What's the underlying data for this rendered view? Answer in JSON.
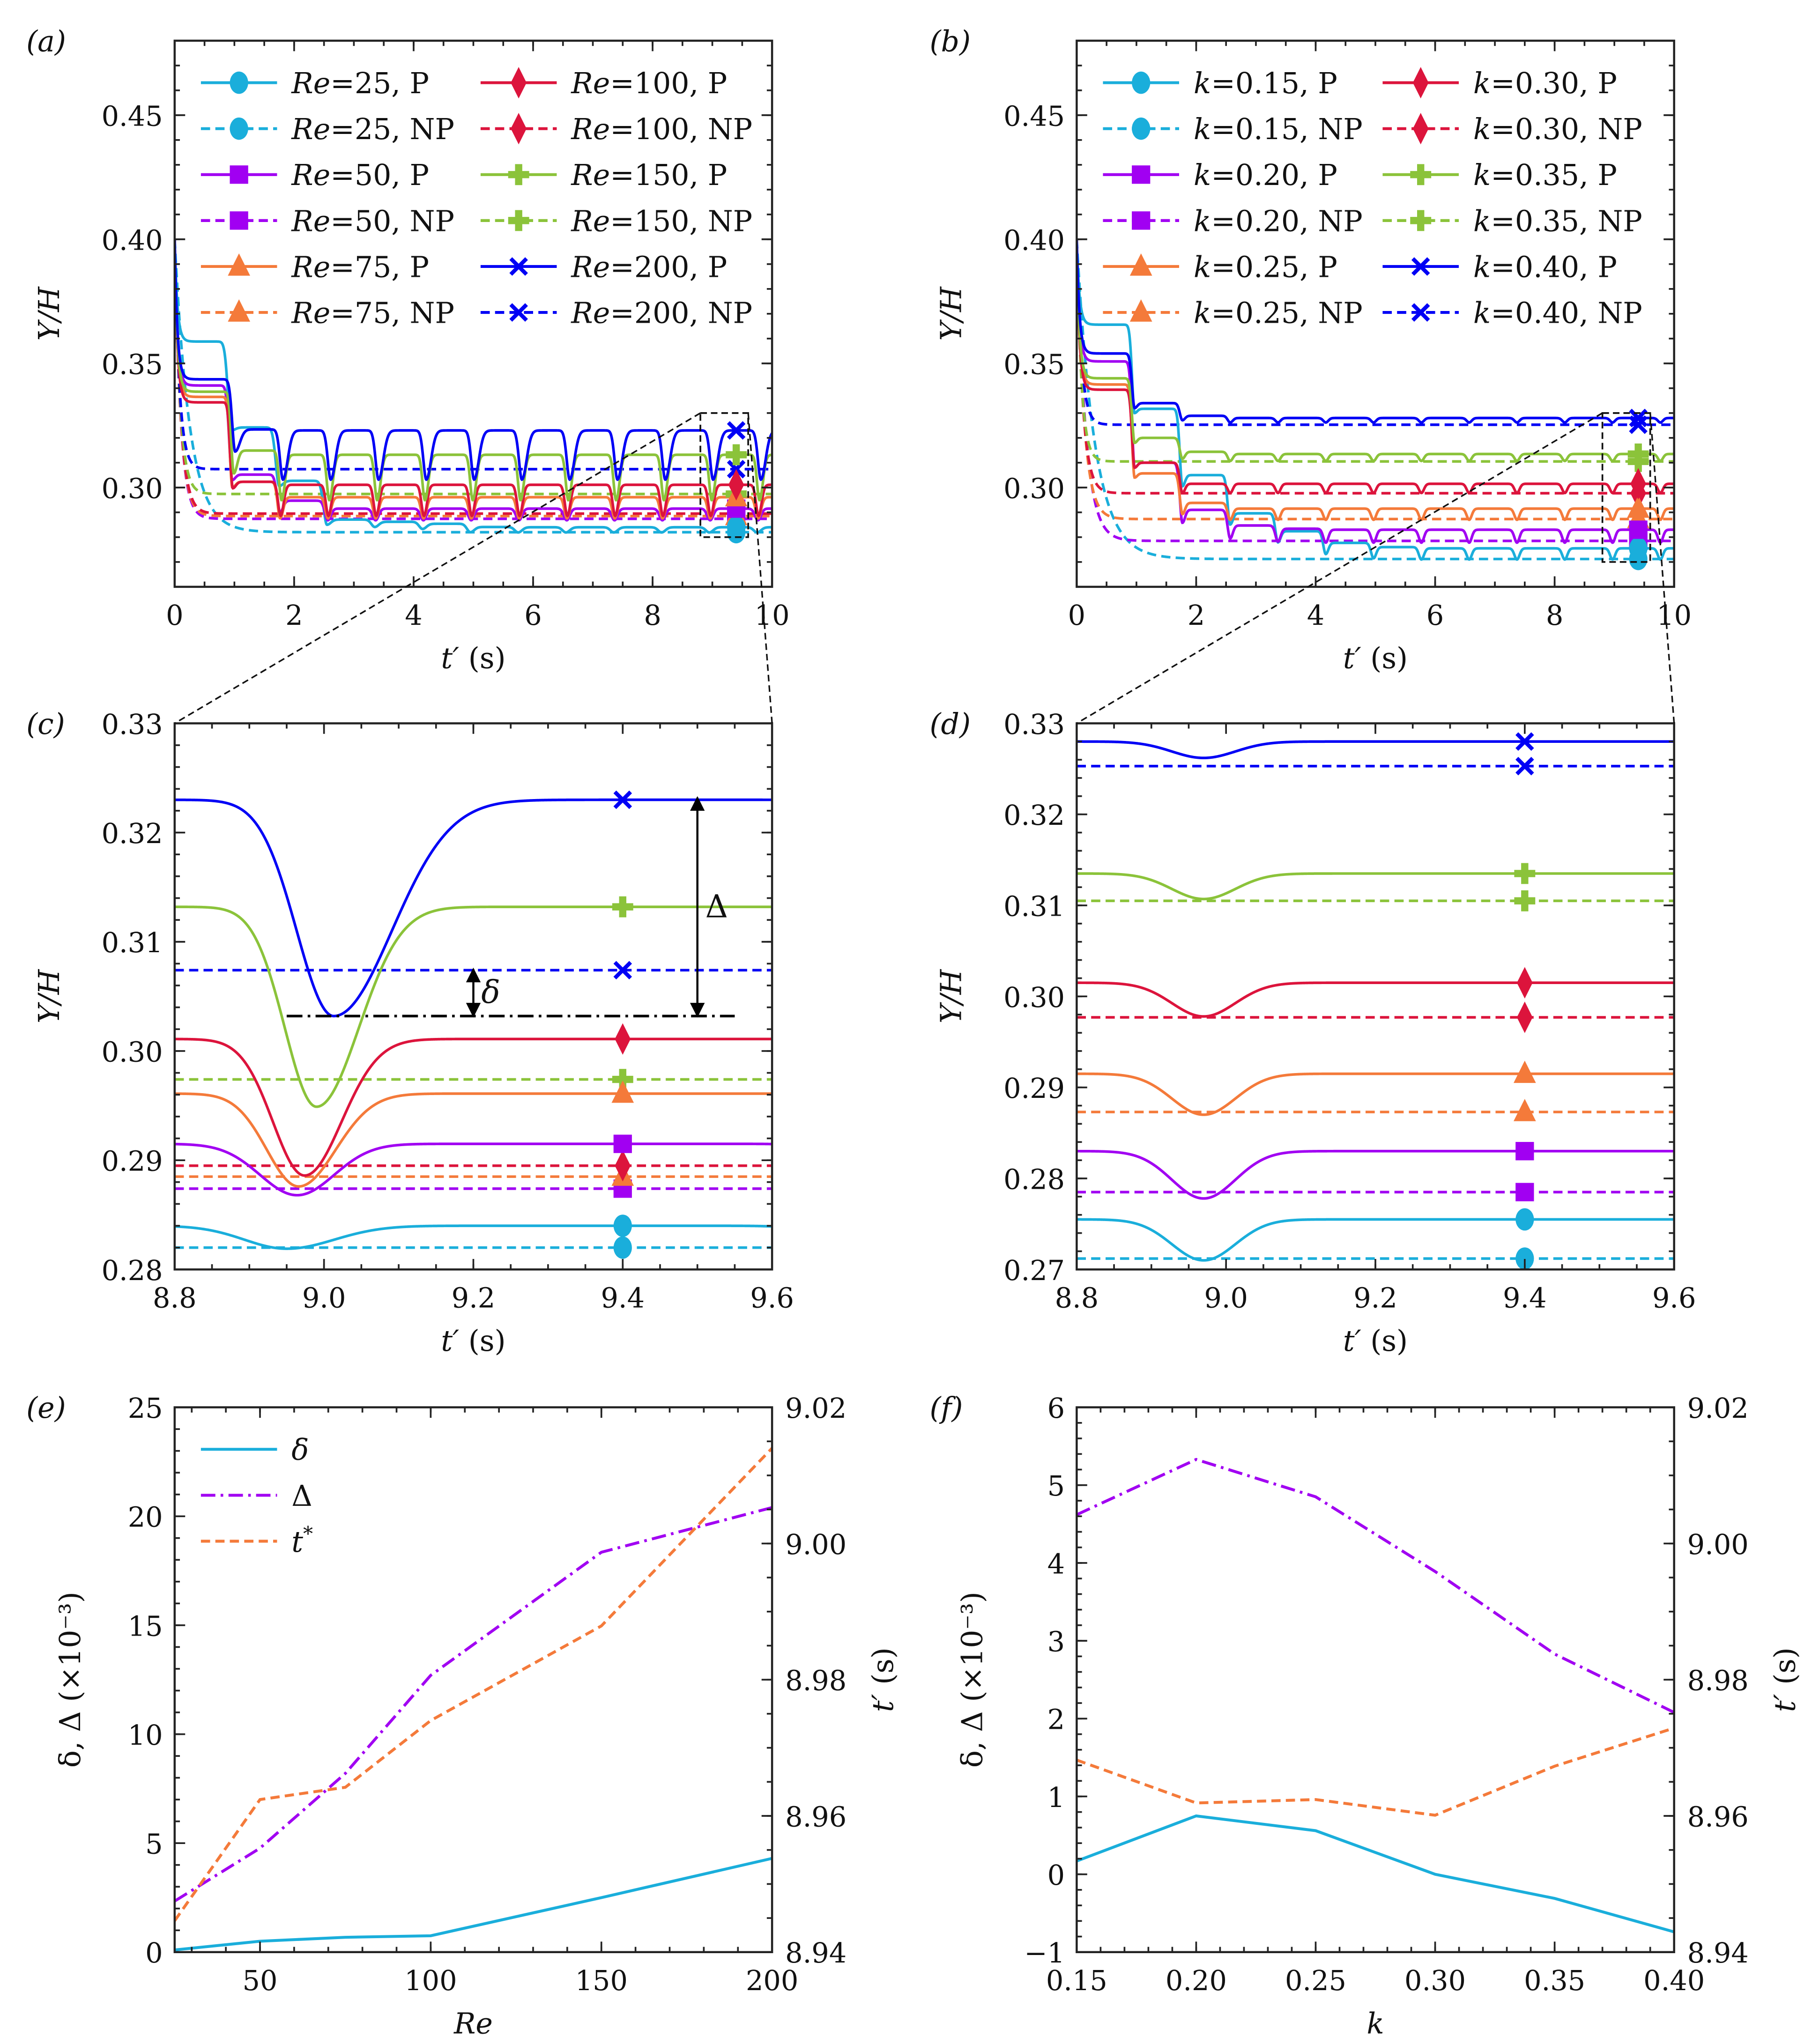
{
  "chart_data": [
    {
      "id": "a",
      "panel_label": "(a)",
      "type": "line",
      "xlabel": {
        "var": "t′",
        "unit": " (s)"
      },
      "ylabel": "Y/H",
      "xlim": [
        0,
        10
      ],
      "ylim": [
        0.26,
        0.48
      ],
      "xticks": [
        0,
        2,
        4,
        6,
        8,
        10
      ],
      "xticklabels": [
        "0",
        "2",
        "4",
        "6",
        "8",
        "10"
      ],
      "xminor": 0.5,
      "yticks": [
        0.3,
        0.35,
        0.4,
        0.45
      ],
      "yticklabels": [
        "0.30",
        "0.35",
        "0.40",
        "0.45"
      ],
      "yminor": 0.01,
      "initial_Y_H": 0.4,
      "first_pinch_t": 1.0,
      "pinch_period": 0.8,
      "marker_t": 9.4,
      "zoom_box": {
        "xlim": [
          8.8,
          9.6
        ],
        "ylim": [
          0.28,
          0.33
        ]
      },
      "legend": "top, 2 columns",
      "series": [
        {
          "name": "Re=25, P",
          "color": "#1aaedb",
          "marker": "circle",
          "style": "solid",
          "levels": [
            0.3588,
            0.3242,
            0.3027,
            0.2871,
            0.2862,
            0.2854,
            0.2841,
            0.284
          ],
          "dip_min": 0.2819,
          "first_dip_min": 0.323,
          "dip_phase": -0.05,
          "dip_sigma": [
            0.08,
            0.09
          ]
        },
        {
          "name": "Re=25, NP",
          "color": "#1aaedb",
          "marker": "circle",
          "style": "dashed",
          "steady": 0.282,
          "tau": 0.25
        },
        {
          "name": "Re=50, P",
          "color": "#a100f2",
          "marker": "square",
          "style": "solid",
          "levels": [
            0.3411,
            0.3052,
            0.2947,
            0.2915
          ],
          "dip_min": 0.2868,
          "first_dip_min": 0.303,
          "dip_phase": -0.036,
          "dip_sigma": [
            0.07,
            0.07
          ]
        },
        {
          "name": "Re=50, NP",
          "color": "#a100f2",
          "marker": "square",
          "style": "dashed",
          "steady": 0.2874,
          "tau": 0.1
        },
        {
          "name": "Re=75, P",
          "color": "#f47a3a",
          "marker": "triangle",
          "style": "solid",
          "levels": [
            0.3365,
            0.3023,
            0.2961
          ],
          "dip_min": 0.2876,
          "first_dip_min": 0.3,
          "dip_phase": -0.034,
          "dip_sigma": [
            0.06,
            0.07
          ]
        },
        {
          "name": "Re=75, NP",
          "color": "#f47a3a",
          "marker": "triangle",
          "style": "dashed",
          "steady": 0.2885,
          "tau": 0.1
        },
        {
          "name": "Re=100, P",
          "color": "#dc143c",
          "marker": "diamond",
          "style": "solid",
          "levels": [
            0.3343,
            0.3023,
            0.3011
          ],
          "dip_min": 0.2886,
          "first_dip_min": 0.2997,
          "dip_phase": -0.026,
          "dip_sigma": [
            0.06,
            0.07
          ]
        },
        {
          "name": "Re=100, NP",
          "color": "#dc143c",
          "marker": "diamond",
          "style": "dashed",
          "steady": 0.2895,
          "tau": 0.1
        },
        {
          "name": "Re=150, P",
          "color": "#8bc33a",
          "marker": "plus",
          "style": "solid",
          "levels": [
            0.3386,
            0.3149,
            0.3132
          ],
          "dip_min": 0.2949,
          "first_dip_min": 0.3057,
          "dip_phase": -0.01,
          "dip_sigma": [
            0.06,
            0.08
          ]
        },
        {
          "name": "Re=150, NP",
          "color": "#8bc33a",
          "marker": "plus",
          "style": "dashed",
          "steady": 0.2974,
          "tau": 0.09
        },
        {
          "name": "Re=200, P",
          "color": "#0000f5",
          "marker": "x",
          "style": "solid",
          "levels": [
            0.3436,
            0.3234,
            0.323
          ],
          "dip_min": 0.3032,
          "first_dip_min": 0.3145,
          "dip_phase": 0.013,
          "dip_sigma": [
            0.07,
            0.11
          ]
        },
        {
          "name": "Re=200, NP",
          "color": "#0000f5",
          "marker": "x",
          "style": "dashed",
          "steady": 0.3074,
          "tau": 0.08
        }
      ]
    },
    {
      "id": "b",
      "panel_label": "(b)",
      "type": "line",
      "xlabel": {
        "var": "t′",
        "unit": " (s)"
      },
      "ylabel": "Y/H",
      "xlim": [
        0,
        10
      ],
      "ylim": [
        0.26,
        0.48
      ],
      "xticks": [
        0,
        2,
        4,
        6,
        8,
        10
      ],
      "xticklabels": [
        "0",
        "2",
        "4",
        "6",
        "8",
        "10"
      ],
      "xminor": 0.5,
      "yticks": [
        0.3,
        0.35,
        0.4,
        0.45
      ],
      "yticklabels": [
        "0.30",
        "0.35",
        "0.40",
        "0.45"
      ],
      "yminor": 0.01,
      "initial_Y_H": 0.4,
      "first_pinch_t": 1.0,
      "pinch_period": 0.8,
      "marker_t": 9.4,
      "zoom_box": {
        "xlim": [
          8.8,
          9.6
        ],
        "ylim": [
          0.27,
          0.33
        ]
      },
      "legend": "top, 2 columns",
      "series": [
        {
          "name": "k=0.15, P",
          "color": "#1aaedb",
          "marker": "circle",
          "style": "solid",
          "levels": [
            0.3656,
            0.3317,
            0.305,
            0.2896,
            0.2824,
            0.2777,
            0.276,
            0.2755
          ],
          "dip_min": 0.271,
          "first_dip_min": 0.33,
          "dip_phase": -0.03,
          "dip_sigma": [
            0.06,
            0.06
          ]
        },
        {
          "name": "k=0.15, NP",
          "color": "#1aaedb",
          "marker": "circle",
          "style": "dashed",
          "steady": 0.2712,
          "tau": 0.3
        },
        {
          "name": "k=0.20, P",
          "color": "#a100f2",
          "marker": "square",
          "style": "solid",
          "levels": [
            0.3508,
            0.31,
            0.291,
            0.2847,
            0.2834,
            0.283
          ],
          "dip_min": 0.2778,
          "first_dip_min": 0.308,
          "dip_phase": -0.03,
          "dip_sigma": [
            0.06,
            0.06
          ]
        },
        {
          "name": "k=0.20, NP",
          "color": "#a100f2",
          "marker": "square",
          "style": "dashed",
          "steady": 0.2785,
          "tau": 0.15
        },
        {
          "name": "k=0.25, P",
          "color": "#f47a3a",
          "marker": "triangle",
          "style": "solid",
          "levels": [
            0.3415,
            0.3057,
            0.2938,
            0.2915
          ],
          "dip_min": 0.287,
          "first_dip_min": 0.304,
          "dip_phase": -0.03,
          "dip_sigma": [
            0.06,
            0.06
          ]
        },
        {
          "name": "k=0.25, NP",
          "color": "#f47a3a",
          "marker": "triangle",
          "style": "dashed",
          "steady": 0.2873,
          "tau": 0.12
        },
        {
          "name": "k=0.30, P",
          "color": "#dc143c",
          "marker": "diamond",
          "style": "solid",
          "levels": [
            0.3394,
            0.31,
            0.3015
          ],
          "dip_min": 0.2978,
          "first_dip_min": 0.308,
          "dip_phase": -0.03,
          "dip_sigma": [
            0.06,
            0.06
          ]
        },
        {
          "name": "k=0.30, NP",
          "color": "#dc143c",
          "marker": "diamond",
          "style": "dashed",
          "steady": 0.2977,
          "tau": 0.1
        },
        {
          "name": "k=0.35, P",
          "color": "#8bc33a",
          "marker": "plus",
          "style": "solid",
          "levels": [
            0.344,
            0.32,
            0.3144,
            0.3135
          ],
          "dip_min": 0.3107,
          "first_dip_min": 0.318,
          "dip_phase": -0.03,
          "dip_sigma": [
            0.06,
            0.06
          ]
        },
        {
          "name": "k=0.35, NP",
          "color": "#8bc33a",
          "marker": "plus",
          "style": "dashed",
          "steady": 0.3105,
          "tau": 0.08
        },
        {
          "name": "k=0.40, P",
          "color": "#0000f5",
          "marker": "x",
          "style": "solid",
          "levels": [
            0.354,
            0.334,
            0.3289,
            0.328
          ],
          "dip_min": 0.3262,
          "first_dip_min": 0.332,
          "dip_phase": -0.03,
          "dip_sigma": [
            0.06,
            0.06
          ]
        },
        {
          "name": "k=0.40, NP",
          "color": "#0000f5",
          "marker": "x",
          "style": "dashed",
          "steady": 0.3253,
          "tau": 0.08
        }
      ]
    },
    {
      "id": "c",
      "panel_label": "(c)",
      "type": "line",
      "zoom_of": "a",
      "xlabel": {
        "var": "t′",
        "unit": " (s)"
      },
      "ylabel": "Y/H",
      "xlim": [
        8.8,
        9.6
      ],
      "ylim": [
        0.28,
        0.33
      ],
      "xticks": [
        8.8,
        9.0,
        9.2,
        9.4,
        9.6
      ],
      "xticklabels": [
        "8.8",
        "9.0",
        "9.2",
        "9.4",
        "9.6"
      ],
      "xminor": 0.05,
      "yticks": [
        0.28,
        0.29,
        0.3,
        0.31,
        0.32,
        0.33
      ],
      "yticklabels": [
        "0.28",
        "0.29",
        "0.30",
        "0.31",
        "0.32",
        "0.33"
      ],
      "yminor": 0.002,
      "annotations": [
        {
          "type": "double_arrow",
          "label": "Δ",
          "t": 9.5,
          "y_from": 0.3032,
          "y_to": 0.3232
        },
        {
          "type": "double_arrow",
          "label": "δ",
          "t": 9.2,
          "y_from": 0.3032,
          "y_to": 0.3075
        },
        {
          "type": "dashdot_line",
          "y": 0.3032,
          "t_from": 8.95,
          "t_to": 9.55
        }
      ]
    },
    {
      "id": "d",
      "panel_label": "(d)",
      "type": "line",
      "zoom_of": "b",
      "xlabel": {
        "var": "t′",
        "unit": " (s)"
      },
      "ylabel": "Y/H",
      "xlim": [
        8.8,
        9.6
      ],
      "ylim": [
        0.27,
        0.33
      ],
      "xticks": [
        8.8,
        9.0,
        9.2,
        9.4,
        9.6
      ],
      "xticklabels": [
        "8.8",
        "9.0",
        "9.2",
        "9.4",
        "9.6"
      ],
      "xminor": 0.05,
      "yticks": [
        0.27,
        0.28,
        0.29,
        0.3,
        0.31,
        0.32,
        0.33
      ],
      "yticklabels": [
        "0.27",
        "0.28",
        "0.29",
        "0.30",
        "0.31",
        "0.32",
        "0.33"
      ],
      "yminor": 0.002
    },
    {
      "id": "e",
      "panel_label": "(e)",
      "type": "line",
      "xlabel": {
        "var": "Re",
        "unit": ""
      },
      "ylabel": "δ, Δ (×10⁻³)",
      "y2label": {
        "var": "t′",
        "unit": " (s)"
      },
      "xlim": [
        25,
        200
      ],
      "ylim": [
        0,
        25
      ],
      "y2lim": [
        8.94,
        9.02
      ],
      "xticks": [
        50,
        100,
        150,
        200
      ],
      "xticklabels": [
        "50",
        "100",
        "150",
        "200"
      ],
      "xminor": 10,
      "yticks": [
        0,
        5,
        10,
        15,
        20,
        25
      ],
      "yticklabels": [
        "0",
        "5",
        "10",
        "15",
        "20",
        "25"
      ],
      "yminor": 1,
      "y2ticks": [
        8.94,
        8.96,
        8.98,
        9.0,
        9.02
      ],
      "y2ticklabels": [
        "8.94",
        "8.96",
        "8.98",
        "9.00",
        "9.02"
      ],
      "y2minor": 0.005,
      "legend": "top-left",
      "x": [
        25,
        50,
        75,
        100,
        150,
        200
      ],
      "series": [
        {
          "name": "δ",
          "axis": "left",
          "style": "solid",
          "color": "#1aaedb",
          "values": [
            0.1,
            0.5,
            0.68,
            0.75,
            2.5,
            4.3
          ]
        },
        {
          "name": "Δ",
          "axis": "left",
          "style": "dashdot",
          "color": "#a100f2",
          "values": [
            2.34,
            4.77,
            8.2,
            12.7,
            18.35,
            20.4
          ]
        },
        {
          "name": "t*",
          "axis": "right",
          "style": "dashed",
          "color": "#f47a3a",
          "values": [
            8.9446,
            8.9624,
            8.9642,
            8.974,
            8.9879,
            9.014
          ]
        }
      ]
    },
    {
      "id": "f",
      "panel_label": "(f)",
      "type": "line",
      "xlabel": {
        "var": "k",
        "unit": ""
      },
      "ylabel": "δ, Δ (×10⁻³)",
      "y2label": {
        "var": "t′",
        "unit": " (s)"
      },
      "xlim": [
        0.15,
        0.4
      ],
      "ylim": [
        -1,
        6
      ],
      "y2lim": [
        8.94,
        9.02
      ],
      "xticks": [
        0.15,
        0.2,
        0.25,
        0.3,
        0.35,
        0.4
      ],
      "xticklabels": [
        "0.15",
        "0.20",
        "0.25",
        "0.30",
        "0.35",
        "0.40"
      ],
      "xminor": 0.01,
      "yticks": [
        -1,
        0,
        1,
        2,
        3,
        4,
        5,
        6
      ],
      "yticklabels": [
        "−1",
        "0",
        "1",
        "2",
        "3",
        "4",
        "5",
        "6"
      ],
      "yminor": 0.2,
      "y2ticks": [
        8.94,
        8.96,
        8.98,
        9.0,
        9.02
      ],
      "y2ticklabels": [
        "8.94",
        "8.96",
        "8.98",
        "9.00",
        "9.02"
      ],
      "y2minor": 0.005,
      "x": [
        0.15,
        0.2,
        0.25,
        0.3,
        0.35,
        0.4
      ],
      "series": [
        {
          "name": "δ",
          "axis": "left",
          "style": "solid",
          "color": "#1aaedb",
          "values": [
            0.17,
            0.75,
            0.56,
            0.0,
            -0.31,
            -0.74
          ]
        },
        {
          "name": "Δ",
          "axis": "left",
          "style": "dashdot",
          "color": "#a100f2",
          "values": [
            4.62,
            5.33,
            4.85,
            3.89,
            2.83,
            2.08
          ]
        },
        {
          "name": "t*",
          "axis": "right",
          "style": "dashed",
          "color": "#f47a3a",
          "values": [
            8.9682,
            8.9619,
            8.9624,
            8.9601,
            8.9673,
            8.9729
          ]
        }
      ]
    }
  ]
}
